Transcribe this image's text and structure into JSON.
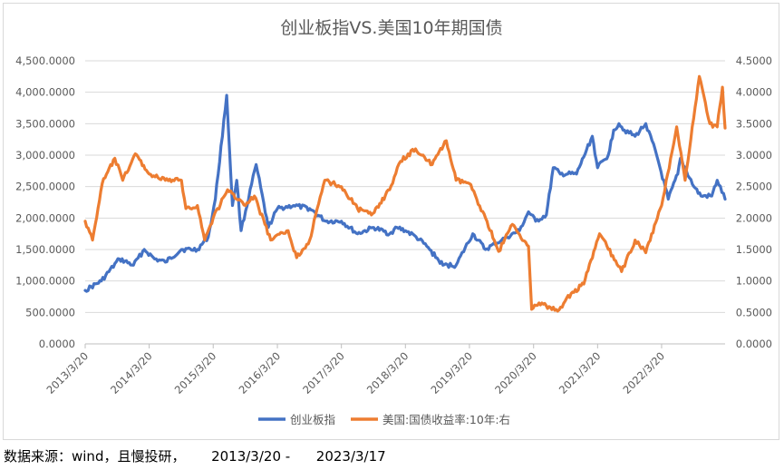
{
  "chart_data": {
    "type": "line",
    "title": "创业板指VS.美国10年期国债",
    "x_tick_labels": [
      "2013/3/20",
      "2014/3/20",
      "2015/3/20",
      "2016/3/20",
      "2017/3/20",
      "2018/3/20",
      "2019/3/20",
      "2020/3/20",
      "2021/3/20",
      "2022/3/20"
    ],
    "left_axis": {
      "ylim": [
        0,
        4500
      ],
      "tick_labels": [
        "0.0000",
        "500.0000",
        "1,000.0000",
        "1,500.0000",
        "2,000.0000",
        "2,500.0000",
        "3,000.0000",
        "3,500.0000",
        "4,000.0000",
        "4,500.0000"
      ]
    },
    "right_axis": {
      "ylim": [
        0,
        4.5
      ],
      "tick_labels": [
        "0.0000",
        "0.5000",
        "1.0000",
        "1.5000",
        "2.0000",
        "2.5000",
        "3.0000",
        "3.5000",
        "4.0000",
        "4.5000"
      ]
    },
    "x_range": [
      "2013/3/20",
      "2023/3/17"
    ],
    "grid": "horizontal",
    "legend_position": "bottom",
    "series": [
      {
        "name": "创业板指",
        "axis": "left",
        "color": "#4472C4",
        "points": [
          [
            "2013/3/20",
            850
          ],
          [
            "2013/6/20",
            1000
          ],
          [
            "2013/10/1",
            1350
          ],
          [
            "2013/12/20",
            1250
          ],
          [
            "2014/2/20",
            1500
          ],
          [
            "2014/4/20",
            1350
          ],
          [
            "2014/6/20",
            1300
          ],
          [
            "2014/9/20",
            1500
          ],
          [
            "2014/12/20",
            1500
          ],
          [
            "2015/2/20",
            1700
          ],
          [
            "2015/4/1",
            2300
          ],
          [
            "2015/6/5",
            3950
          ],
          [
            "2015/7/8",
            2200
          ],
          [
            "2015/8/1",
            2600
          ],
          [
            "2015/8/26",
            1800
          ],
          [
            "2015/11/20",
            2850
          ],
          [
            "2016/1/28",
            1850
          ],
          [
            "2016/3/20",
            2150
          ],
          [
            "2016/6/20",
            2200
          ],
          [
            "2016/9/20",
            2150
          ],
          [
            "2016/12/20",
            1950
          ],
          [
            "2017/3/20",
            1950
          ],
          [
            "2017/6/20",
            1750
          ],
          [
            "2017/9/20",
            1850
          ],
          [
            "2017/12/20",
            1750
          ],
          [
            "2018/1/31",
            1850
          ],
          [
            "2018/3/20",
            1800
          ],
          [
            "2018/5/20",
            1700
          ],
          [
            "2018/7/20",
            1550
          ],
          [
            "2018/10/20",
            1250
          ],
          [
            "2019/1/3",
            1250
          ],
          [
            "2019/4/8",
            1750
          ],
          [
            "2019/6/20",
            1500
          ],
          [
            "2019/9/20",
            1650
          ],
          [
            "2019/12/31",
            1800
          ],
          [
            "2020/2/20",
            2100
          ],
          [
            "2020/4/1",
            1950
          ],
          [
            "2020/6/1",
            2050
          ],
          [
            "2020/7/10",
            2800
          ],
          [
            "2020/8/20",
            2700
          ],
          [
            "2020/11/20",
            2700
          ],
          [
            "2021/2/18",
            3300
          ],
          [
            "2021/3/20",
            2800
          ],
          [
            "2021/5/20",
            3000
          ],
          [
            "2021/6/20",
            3400
          ],
          [
            "2021/7/20",
            3500
          ],
          [
            "2021/8/20",
            3400
          ],
          [
            "2021/10/20",
            3300
          ],
          [
            "2021/12/20",
            3500
          ],
          [
            "2022/2/20",
            3000
          ],
          [
            "2022/4/27",
            2300
          ],
          [
            "2022/6/20",
            2700
          ],
          [
            "2022/7/5",
            2950
          ],
          [
            "2022/9/20",
            2500
          ],
          [
            "2022/10/31",
            2350
          ],
          [
            "2022/12/31",
            2350
          ],
          [
            "2023/1/31",
            2600
          ],
          [
            "2023/3/17",
            2300
          ]
        ]
      },
      {
        "name": "美国:国债收益率:10年:右",
        "axis": "right",
        "color": "#ED7D31",
        "points": [
          [
            "2013/3/20",
            1.95
          ],
          [
            "2013/5/1",
            1.65
          ],
          [
            "2013/6/25",
            2.55
          ],
          [
            "2013/9/5",
            2.95
          ],
          [
            "2013/10/20",
            2.6
          ],
          [
            "2013/12/31",
            3.02
          ],
          [
            "2014/3/20",
            2.7
          ],
          [
            "2014/6/20",
            2.6
          ],
          [
            "2014/9/20",
            2.6
          ],
          [
            "2014/10/15",
            2.15
          ],
          [
            "2014/12/20",
            2.2
          ],
          [
            "2015/1/30",
            1.65
          ],
          [
            "2015/3/20",
            2.0
          ],
          [
            "2015/6/10",
            2.45
          ],
          [
            "2015/9/20",
            2.2
          ],
          [
            "2015/11/10",
            2.35
          ],
          [
            "2016/2/11",
            1.65
          ],
          [
            "2016/5/20",
            1.8
          ],
          [
            "2016/7/8",
            1.37
          ],
          [
            "2016/9/20",
            1.65
          ],
          [
            "2016/12/15",
            2.6
          ],
          [
            "2017/3/20",
            2.5
          ],
          [
            "2017/6/20",
            2.15
          ],
          [
            "2017/9/7",
            2.05
          ],
          [
            "2017/12/20",
            2.45
          ],
          [
            "2018/2/20",
            2.9
          ],
          [
            "2018/5/17",
            3.1
          ],
          [
            "2018/8/20",
            2.85
          ],
          [
            "2018/11/8",
            3.23
          ],
          [
            "2019/1/3",
            2.6
          ],
          [
            "2019/3/20",
            2.55
          ],
          [
            "2019/6/20",
            2.0
          ],
          [
            "2019/9/3",
            1.47
          ],
          [
            "2019/11/20",
            1.9
          ],
          [
            "2020/2/20",
            1.55
          ],
          [
            "2020/3/9",
            0.55
          ],
          [
            "2020/4/20",
            0.65
          ],
          [
            "2020/8/4",
            0.52
          ],
          [
            "2020/10/20",
            0.8
          ],
          [
            "2020/12/31",
            0.95
          ],
          [
            "2021/3/31",
            1.75
          ],
          [
            "2021/8/4",
            1.15
          ],
          [
            "2021/10/20",
            1.65
          ],
          [
            "2021/12/20",
            1.45
          ],
          [
            "2022/3/20",
            2.2
          ],
          [
            "2022/6/14",
            3.45
          ],
          [
            "2022/8/1",
            2.6
          ],
          [
            "2022/10/21",
            4.25
          ],
          [
            "2022/12/20",
            3.5
          ],
          [
            "2023/1/31",
            3.45
          ],
          [
            "2023/3/2",
            4.08
          ],
          [
            "2023/3/17",
            3.43
          ]
        ]
      }
    ]
  },
  "footer": {
    "source_text": "数据来源：wind，且慢投研，      2013/3/20 -      2023/3/17"
  }
}
